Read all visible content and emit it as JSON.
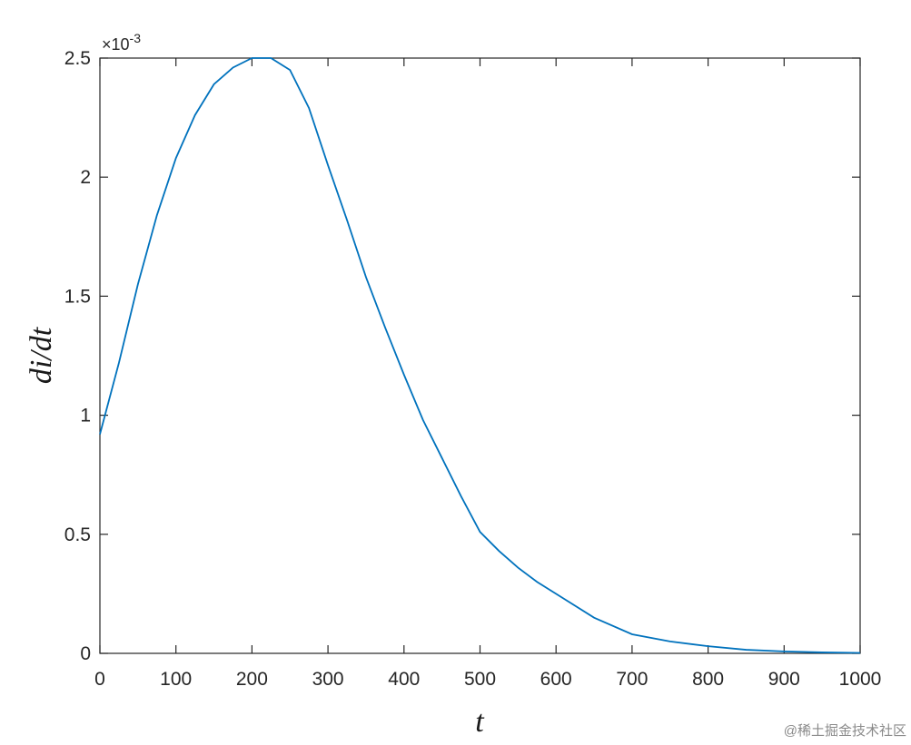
{
  "chart_data": {
    "type": "line",
    "x_label": "t",
    "y_label": "di/dt",
    "y_multiplier": "×10",
    "y_multiplier_exp": "-3",
    "watermark": "@稀土掘金技术社区",
    "x": [
      0,
      25,
      50,
      75,
      100,
      125,
      150,
      175,
      200,
      225,
      250,
      275,
      300,
      325,
      350,
      375,
      400,
      425,
      450,
      475,
      500,
      525,
      550,
      575,
      600,
      650,
      700,
      750,
      800,
      850,
      900,
      950,
      1000
    ],
    "series": [
      {
        "name": "di/dt",
        "color": "#0072bd",
        "values": [
          0.92,
          1.22,
          1.55,
          1.84,
          2.08,
          2.26,
          2.39,
          2.46,
          2.5,
          2.5,
          2.45,
          2.29,
          2.05,
          1.82,
          1.58,
          1.37,
          1.17,
          0.98,
          0.82,
          0.66,
          0.51,
          0.43,
          0.36,
          0.3,
          0.25,
          0.15,
          0.08,
          0.05,
          0.03,
          0.015,
          0.008,
          0.004,
          0.002
        ]
      }
    ],
    "xlim": [
      0,
      1000
    ],
    "ylim": [
      0,
      2.5
    ],
    "xticks": [
      0,
      100,
      200,
      300,
      400,
      500,
      600,
      700,
      800,
      900,
      1000
    ],
    "yticks": [
      0,
      0.5,
      1,
      1.5,
      2,
      2.5
    ]
  }
}
